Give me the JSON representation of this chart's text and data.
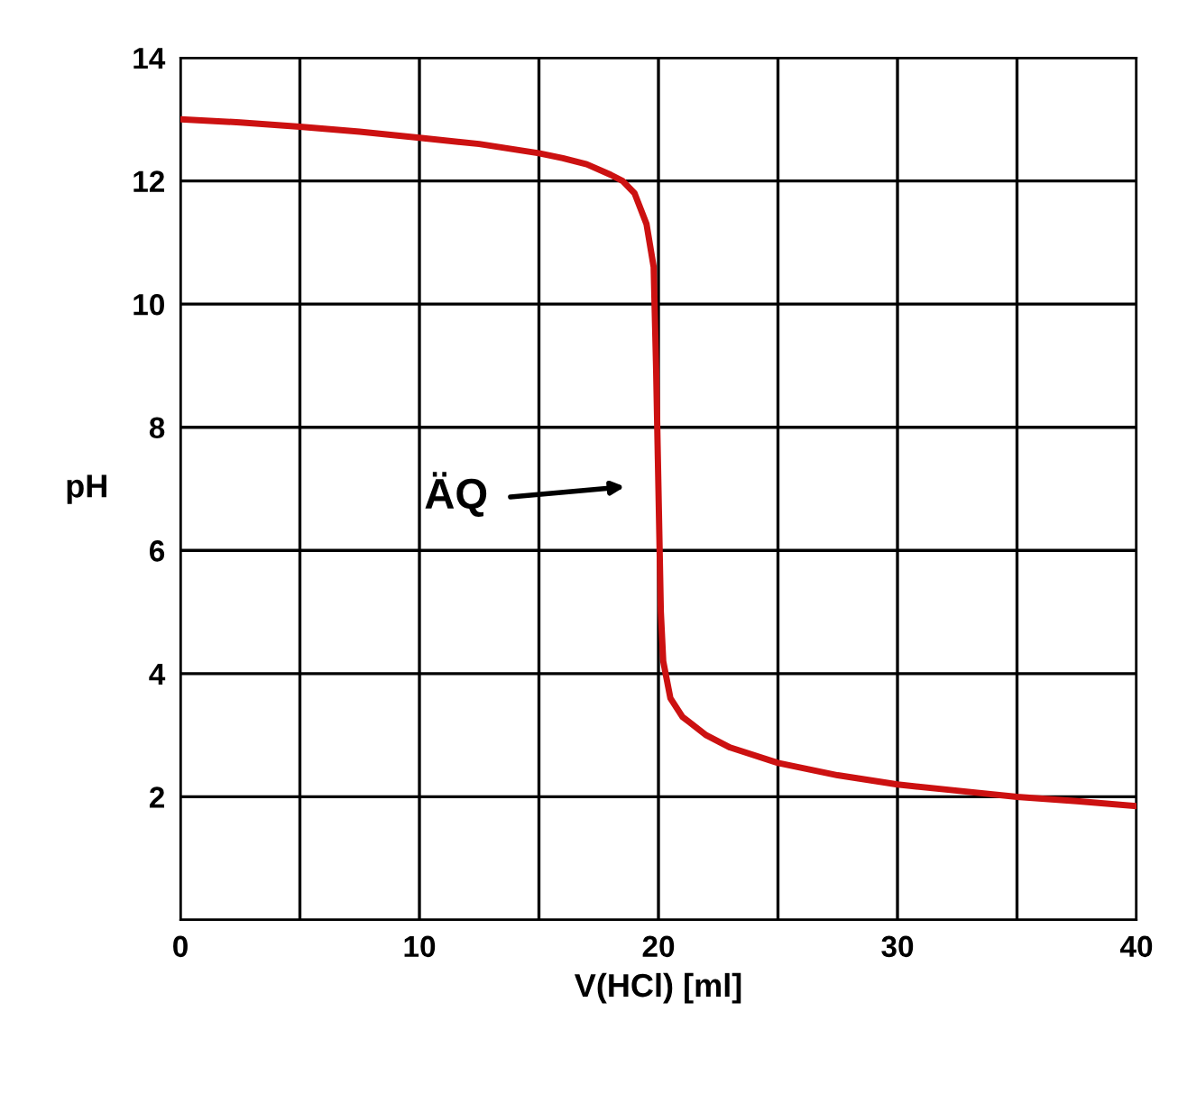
{
  "chart_data": {
    "type": "line",
    "xlabel": "V(HCl) [ml]",
    "ylabel": "pH",
    "x": [
      0,
      2.5,
      5,
      7.5,
      10,
      12.5,
      15,
      16,
      17,
      18,
      18.5,
      19,
      19.5,
      19.8,
      19.9,
      20,
      20.1,
      20.2,
      20.5,
      21,
      22,
      23,
      25,
      27.5,
      30,
      32.5,
      35,
      37.5,
      40
    ],
    "series": [
      {
        "color": "#cc1111",
        "values": [
          13.0,
          12.95,
          12.88,
          12.8,
          12.7,
          12.6,
          12.45,
          12.37,
          12.27,
          12.1,
          12.0,
          11.8,
          11.3,
          10.6,
          9.0,
          7.0,
          5.0,
          4.2,
          3.6,
          3.3,
          3.0,
          2.8,
          2.55,
          2.35,
          2.2,
          2.1,
          2.0,
          1.93,
          1.85
        ]
      }
    ],
    "xlim": [
      0,
      40
    ],
    "ylim": [
      0,
      14
    ],
    "xticks": [
      0,
      {
        "value": 5,
        "label": null
      },
      10,
      {
        "value": 15,
        "label": null
      },
      20,
      {
        "value": 25,
        "label": null
      },
      30,
      {
        "value": 35,
        "label": null
      },
      40
    ],
    "yticks": [
      {
        "value": 0,
        "label": null
      },
      2,
      4,
      6,
      8,
      10,
      12,
      14
    ],
    "grid": true,
    "marker": "none",
    "line_style": "solid",
    "annotations": [
      "ÄQ"
    ]
  }
}
